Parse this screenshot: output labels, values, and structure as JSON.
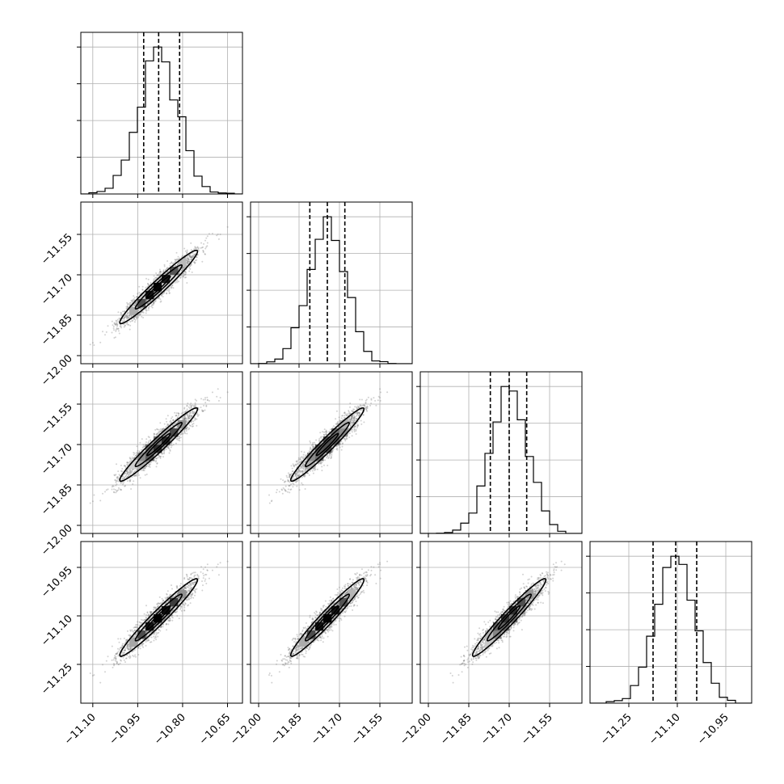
{
  "chart_data": {
    "type": "corner",
    "n_params": 4,
    "labels": [
      "",
      "",
      "",
      ""
    ],
    "title": "",
    "ranges": [
      [
        -11.14,
        -10.6
      ],
      [
        -12.03,
        -11.43
      ],
      [
        -12.03,
        -11.43
      ],
      [
        -11.37,
        -10.87
      ]
    ],
    "ticks": [
      {
        "values": [
          -11.1,
          -10.95,
          -10.8,
          -10.65
        ],
        "labels": [
          "−11.10",
          "−10.95",
          "−10.80",
          "−10.65"
        ]
      },
      {
        "values": [
          -12.0,
          -11.85,
          -11.7,
          -11.55
        ],
        "labels": [
          "−12.00",
          "−11.85",
          "−11.70",
          "−11.55"
        ]
      },
      {
        "values": [
          -12.0,
          -11.85,
          -11.7,
          -11.55
        ],
        "labels": [
          "−12.00",
          "−11.85",
          "−11.70",
          "−11.55"
        ]
      },
      {
        "values": [
          -11.25,
          -11.1,
          -10.95
        ],
        "labels": [
          "−11.25",
          "−11.10",
          "−10.95"
        ]
      }
    ],
    "means": [
      -10.88,
      -11.745,
      -11.7,
      -11.105
    ],
    "sigmas": [
      0.065,
      0.068,
      0.068,
      0.06
    ],
    "quantiles": [
      [
        -10.93,
        -10.88,
        -10.81
      ],
      [
        -11.81,
        -11.745,
        -11.68
      ],
      [
        -11.77,
        -11.7,
        -11.635
      ],
      [
        -11.175,
        -11.105,
        -11.04
      ]
    ],
    "correlation": 0.97,
    "hist_bins": 20,
    "grid": true,
    "colors": {
      "hist": "#000000",
      "points": "#7f7f7f",
      "density": "#000000",
      "grid": "#b0b0b0"
    }
  }
}
